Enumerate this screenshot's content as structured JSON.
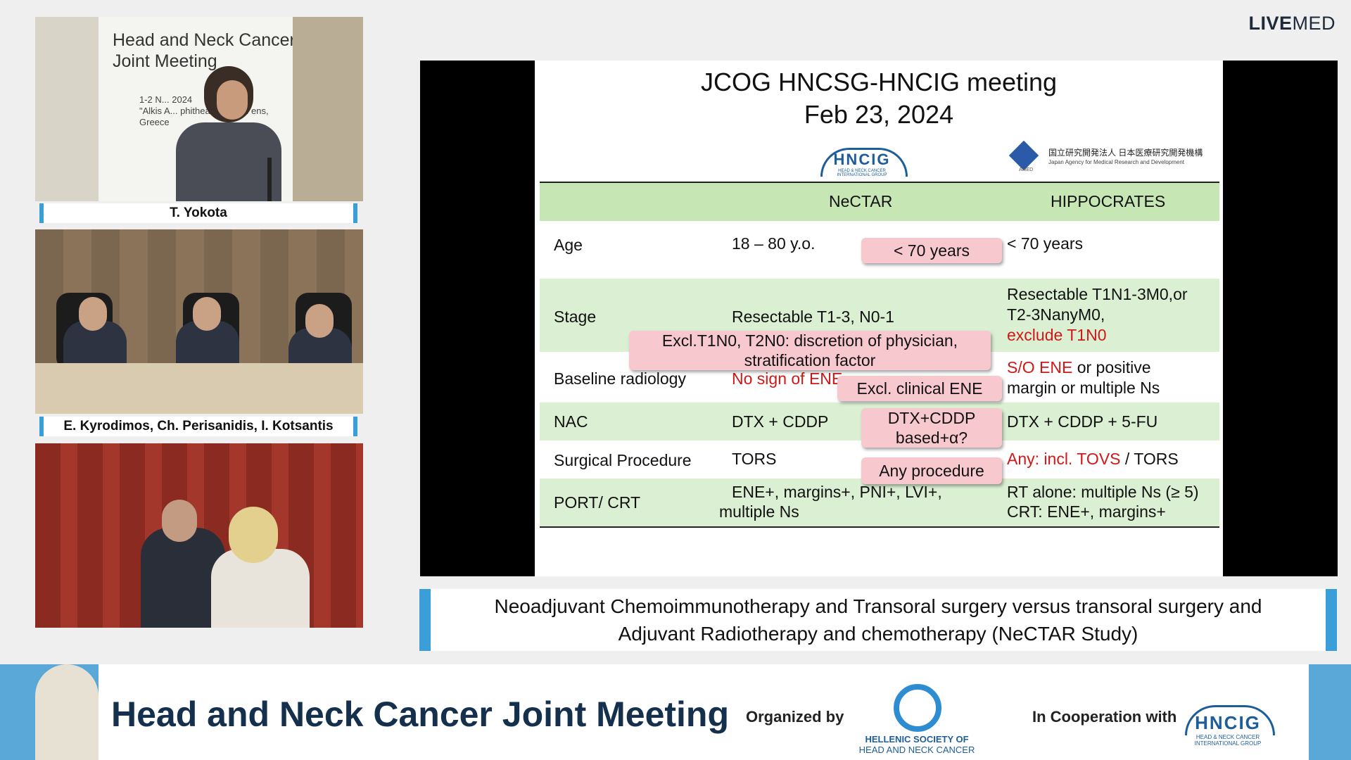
{
  "brand": {
    "bold": "LIVE",
    "regular": "MED"
  },
  "speakers": {
    "tile1_banner": "Head and Neck Cancer Joint Meeting",
    "tile1_dates": "1-2 N... 2024",
    "tile1_venue": "\"Alkis A... phitheatre Univ... ens, Greece",
    "caption1": "T. Yokota",
    "caption2": "E. Kyrodimos, Ch. Perisanidis, I. Kotsantis"
  },
  "slide": {
    "title_line1": "JCOG HNCSG-HNCIG meeting",
    "title_line2": "Feb 23, 2024",
    "hncig_logo": "HNCIG",
    "hncig_sub": "HEAD & NECK CANCER INTERNATIONAL GROUP",
    "amed_name": "国立研究開発法人 日本医療研究開発機構",
    "amed_sub": "Japan Agency for Medical Research and Development",
    "amed_label": "AMED",
    "headers": {
      "col1": "NeCTAR",
      "col2": "HIPPOCRATES"
    },
    "rows": {
      "age": {
        "label": "Age",
        "nectar": "18 – 80 y.o.",
        "hipp": "< 70 years"
      },
      "stage": {
        "label": "Stage",
        "nectar": "Resectable T1-3, N0-1",
        "hipp1": "Resectable T1N1-3M0,or",
        "hipp2": "T2-3NanyM0,",
        "hipp3": "exclude T1N0"
      },
      "radiology": {
        "label": "Baseline radiology",
        "nectar": "No sign of ENE",
        "hipp_red": "S/O ENE",
        "hipp_rest": " or positive",
        "hipp2": "margin or multiple Ns"
      },
      "nac": {
        "label": "NAC",
        "nectar": "DTX + CDDP",
        "hipp": "DTX + CDDP + 5-FU"
      },
      "surgery": {
        "label": "Surgical Procedure",
        "nectar": "TORS",
        "hipp_red": "Any: incl. TOVS",
        "hipp_rest": " / TORS"
      },
      "port": {
        "label": "PORT/ CRT",
        "nectar1": "ENE+, margins+, PNI+, LVI+,",
        "nectar2": "multiple Ns",
        "hipp1": "RT alone: multiple Ns (≥ 5)",
        "hipp2": "CRT: ENE+, margins+"
      }
    },
    "callouts": {
      "age": "< 70 years",
      "stage1": "Excl.T1N0, T2N0: discretion of physician,",
      "stage2": "stratification factor",
      "ene": "Excl. clinical ENE",
      "nac1": "DTX+CDDP",
      "nac2": "based+α?",
      "surgery": "Any procedure"
    }
  },
  "lower_caption": {
    "line1": "Neoadjuvant Chemoimmunotherapy and Transoral surgery versus transoral surgery and",
    "line2": "Adjuvant Radiotherapy and chemotherapy (NeCTAR Study)"
  },
  "footer": {
    "title": "Head and Neck Cancer Joint Meeting",
    "organized_by": "Organized by",
    "society_line1": "HELLENIC SOCIETY OF",
    "society_line2": "HEAD AND NECK CANCER",
    "cooperation": "In Cooperation with",
    "hncig": "HNCIG",
    "hncig_sub": "HEAD & NECK CANCER INTERNATIONAL GROUP"
  }
}
